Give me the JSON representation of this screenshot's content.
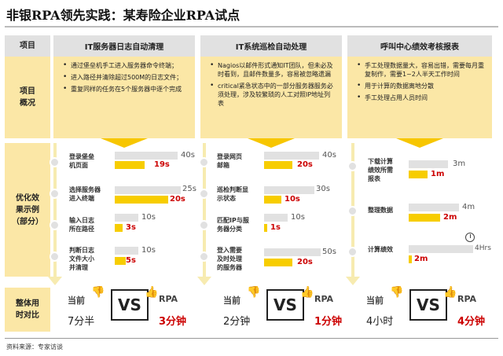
{
  "title": "非银RPA领先实践：某寿险企业RPA试点",
  "labels": {
    "item": "项目",
    "overview": "项目\n概况",
    "example": "优化效\n果示例\n（部分）",
    "overall": "整体用\n时对比"
  },
  "columns": [
    {
      "header": "IT服务器日志自动清理",
      "bullets": [
        "通过堡垒机手工进入服务器命令终端；",
        "进入路径并清除超过500M的日志文件；",
        "重复同样的任务在5个服务器中逐个完成"
      ],
      "tasks": [
        {
          "name": "登录堡垒\n机页面",
          "before": "40s",
          "after": "19s"
        },
        {
          "name": "选择服务器\n进入终端",
          "before": "25s",
          "after": "20s"
        },
        {
          "name": "输入日志\n所在路径",
          "before": "10s",
          "after": "3s"
        },
        {
          "name": "判断日志\n文件大小\n并清理",
          "before": "10s",
          "after": "5s"
        }
      ],
      "now_label": "当前",
      "rpa_label": "RPA",
      "vs": "VS",
      "now_time": "7分半",
      "rpa_time": "3分钟"
    },
    {
      "header": "IT系统巡检自动处理",
      "bullets": [
        "Nagios以邮件形式通知IT团队，但未必及时看到，且邮件数量多，容易被忽略遗漏",
        "critical紧急状态中的一部分服务器服务必须处理，涉及较繁琐的人工对照IP地址列表"
      ],
      "tasks": [
        {
          "name": "登录网页\n邮箱",
          "before": "40s",
          "after": "20s"
        },
        {
          "name": "巡检判断显\n示状态",
          "before": "30s",
          "after": "10s"
        },
        {
          "name": "匹配IP与服\n务器分类",
          "before": "10s",
          "after": "1s"
        },
        {
          "name": "登入需要\n及时处理\n的服务器",
          "before": "50s",
          "after": "20s"
        }
      ],
      "now_label": "当前",
      "rpa_label": "RPA",
      "vs": "VS",
      "now_time": "2分钟",
      "rpa_time": "1分钟"
    },
    {
      "header": "呼叫中心绩效考核报表",
      "bullets": [
        "手工处理数据量大，容易出错，需要每月重复制作，需要1~2人半天工作时间",
        "用于计算的数据离地分散",
        "手工处理占用人员时间"
      ],
      "tasks": [
        {
          "name": "下载计算\n绩效所需\n报表",
          "before": "3m",
          "after": "1m"
        },
        {
          "name": "整理数据",
          "before": "4m",
          "after": "2m"
        },
        {
          "name": "计算绩效",
          "before": "4Hrs",
          "after": "2m"
        }
      ],
      "now_label": "当前",
      "rpa_label": "RPA",
      "vs": "VS",
      "now_time": "4小时",
      "rpa_time": "4分钟"
    }
  ],
  "source": "资料来源：专家访谈",
  "colors": {
    "accent": "#F7CD00",
    "highlight": "#CC0000",
    "panel": "#FBE7A6",
    "grey": "#E1E1E1"
  },
  "icons": {
    "thumb_down": "thumb-down-icon",
    "thumb_up": "thumb-up-icon",
    "clock": "clock-icon"
  }
}
